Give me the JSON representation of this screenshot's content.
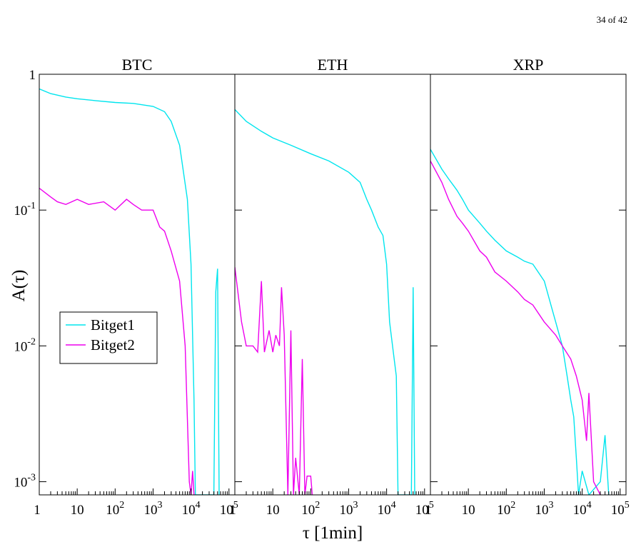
{
  "page_number": "34 of 42",
  "colors": {
    "Bitget1": "#00e5ee",
    "Bitget2": "#ee00ee",
    "axes": "#000000"
  },
  "chart_data": {
    "type": "line",
    "ylabel": "A(τ)",
    "xlabel": "τ [1min]",
    "xscale": "log",
    "yscale": "log",
    "xlim": [
      1,
      100000
    ],
    "ylim": [
      0.0008,
      1
    ],
    "x_tick_labels": [
      "1",
      "10",
      "10^2",
      "10^3",
      "10^4",
      "10^5"
    ],
    "y_tick_labels": [
      "1",
      "10^-1",
      "10^-2",
      "10^-3"
    ],
    "legend": {
      "entries": [
        "Bitget1",
        "Bitget2"
      ],
      "placement": "left-center of first panel"
    },
    "panels": [
      {
        "title": "BTC",
        "series": [
          {
            "name": "Bitget1",
            "points": [
              [
                1,
                0.78
              ],
              [
                2,
                0.72
              ],
              [
                5,
                0.68
              ],
              [
                10,
                0.66
              ],
              [
                30,
                0.64
              ],
              [
                100,
                0.62
              ],
              [
                300,
                0.61
              ],
              [
                1000,
                0.58
              ],
              [
                2000,
                0.53
              ],
              [
                3000,
                0.45
              ],
              [
                5000,
                0.3
              ],
              [
                8000,
                0.12
              ],
              [
                10000,
                0.04
              ],
              [
                12000,
                0.004
              ],
              [
                13000,
                0.0008
              ],
              [
                40000,
                0.0008
              ],
              [
                45000,
                0.025
              ],
              [
                50000,
                0.037
              ],
              [
                55000,
                0.0008
              ]
            ]
          },
          {
            "name": "Bitget2",
            "points": [
              [
                1,
                0.145
              ],
              [
                2,
                0.125
              ],
              [
                3,
                0.115
              ],
              [
                5,
                0.11
              ],
              [
                10,
                0.12
              ],
              [
                20,
                0.11
              ],
              [
                50,
                0.115
              ],
              [
                100,
                0.1
              ],
              [
                200,
                0.12
              ],
              [
                300,
                0.11
              ],
              [
                500,
                0.1
              ],
              [
                1000,
                0.1
              ],
              [
                1500,
                0.075
              ],
              [
                2000,
                0.07
              ],
              [
                3000,
                0.05
              ],
              [
                5000,
                0.03
              ],
              [
                7000,
                0.01
              ],
              [
                9000,
                0.001
              ],
              [
                10000,
                0.0008
              ],
              [
                11000,
                0.0012
              ],
              [
                12000,
                0.0008
              ]
            ]
          }
        ]
      },
      {
        "title": "ETH",
        "series": [
          {
            "name": "Bitget1",
            "points": [
              [
                1,
                0.55
              ],
              [
                2,
                0.45
              ],
              [
                5,
                0.38
              ],
              [
                10,
                0.34
              ],
              [
                30,
                0.3
              ],
              [
                100,
                0.26
              ],
              [
                300,
                0.23
              ],
              [
                1000,
                0.19
              ],
              [
                2000,
                0.16
              ],
              [
                3000,
                0.12
              ],
              [
                4000,
                0.1
              ],
              [
                6000,
                0.075
              ],
              [
                8000,
                0.065
              ],
              [
                10000,
                0.04
              ],
              [
                12000,
                0.015
              ],
              [
                15000,
                0.009
              ],
              [
                18000,
                0.006
              ],
              [
                20000,
                0.0008
              ],
              [
                45000,
                0.0008
              ],
              [
                50000,
                0.027
              ],
              [
                55000,
                0.0008
              ]
            ]
          },
          {
            "name": "Bitget2",
            "points": [
              [
                1,
                0.038
              ],
              [
                1.5,
                0.015
              ],
              [
                2,
                0.01
              ],
              [
                3,
                0.01
              ],
              [
                4,
                0.009
              ],
              [
                5,
                0.03
              ],
              [
                6,
                0.009
              ],
              [
                8,
                0.013
              ],
              [
                10,
                0.009
              ],
              [
                12,
                0.012
              ],
              [
                15,
                0.01
              ],
              [
                17,
                0.027
              ],
              [
                20,
                0.012
              ],
              [
                25,
                0.0008
              ],
              [
                30,
                0.013
              ],
              [
                35,
                0.0008
              ],
              [
                40,
                0.0015
              ],
              [
                50,
                0.0008
              ],
              [
                60,
                0.008
              ],
              [
                70,
                0.0008
              ],
              [
                80,
                0.0011
              ],
              [
                100,
                0.0011
              ],
              [
                110,
                0.0008
              ]
            ]
          }
        ]
      },
      {
        "title": "XRP",
        "series": [
          {
            "name": "Bitget1",
            "points": [
              [
                1,
                0.28
              ],
              [
                2,
                0.2
              ],
              [
                3,
                0.17
              ],
              [
                5,
                0.14
              ],
              [
                7,
                0.12
              ],
              [
                10,
                0.1
              ],
              [
                20,
                0.08
              ],
              [
                30,
                0.07
              ],
              [
                50,
                0.06
              ],
              [
                100,
                0.05
              ],
              [
                200,
                0.045
              ],
              [
                300,
                0.042
              ],
              [
                500,
                0.04
              ],
              [
                1000,
                0.03
              ],
              [
                1500,
                0.02
              ],
              [
                2000,
                0.015
              ],
              [
                3000,
                0.01
              ],
              [
                4000,
                0.006
              ],
              [
                5000,
                0.004
              ],
              [
                6000,
                0.003
              ],
              [
                7000,
                0.0015
              ],
              [
                8000,
                0.0008
              ],
              [
                10000,
                0.0012
              ],
              [
                15000,
                0.0008
              ],
              [
                30000,
                0.001
              ],
              [
                40000,
                0.0022
              ],
              [
                50000,
                0.0008
              ]
            ]
          },
          {
            "name": "Bitget2",
            "points": [
              [
                1,
                0.23
              ],
              [
                2,
                0.16
              ],
              [
                3,
                0.12
              ],
              [
                5,
                0.09
              ],
              [
                7,
                0.08
              ],
              [
                10,
                0.07
              ],
              [
                20,
                0.05
              ],
              [
                30,
                0.045
              ],
              [
                50,
                0.035
              ],
              [
                100,
                0.03
              ],
              [
                200,
                0.025
              ],
              [
                300,
                0.022
              ],
              [
                500,
                0.02
              ],
              [
                1000,
                0.015
              ],
              [
                2000,
                0.012
              ],
              [
                3000,
                0.01
              ],
              [
                5000,
                0.008
              ],
              [
                7000,
                0.006
              ],
              [
                10000,
                0.004
              ],
              [
                13000,
                0.002
              ],
              [
                15000,
                0.0045
              ],
              [
                20000,
                0.001
              ],
              [
                30000,
                0.0008
              ]
            ]
          }
        ]
      }
    ]
  }
}
